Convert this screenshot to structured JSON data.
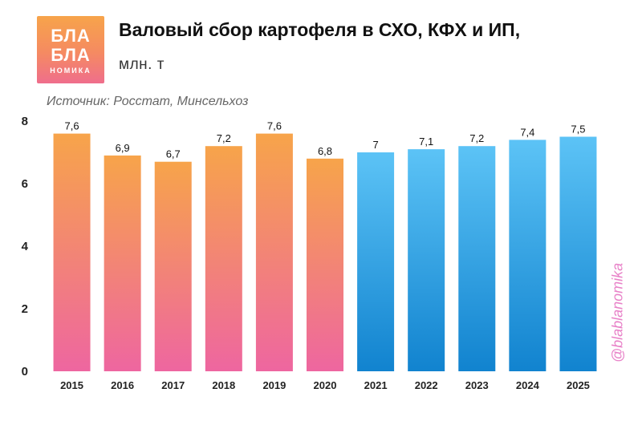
{
  "logo": {
    "line1": "БЛА",
    "line2": "БЛА",
    "line3": "НОМИКА"
  },
  "header": {
    "title": "Валовый сбор картофеля в СХО, КФХ и ИП,",
    "subtitle": "млн. т"
  },
  "source": "Источник: Росстат, Минсельхоз",
  "watermark": "@blablanomika",
  "colors": {
    "warm_top": "#f7a44a",
    "warm_bottom": "#ee66a0",
    "cool_top": "#5cc3f6",
    "cool_bottom": "#1183cf"
  },
  "chart_data": {
    "type": "bar",
    "categories": [
      "2015",
      "2016",
      "2017",
      "2018",
      "2019",
      "2020",
      "2021",
      "2022",
      "2023",
      "2024",
      "2025"
    ],
    "values": [
      7.6,
      6.9,
      6.7,
      7.2,
      7.6,
      6.8,
      7.0,
      7.1,
      7.2,
      7.4,
      7.5
    ],
    "value_labels": [
      "7,6",
      "6,9",
      "6,7",
      "7,2",
      "7,6",
      "6,8",
      "7",
      "7,1",
      "7,2",
      "7,4",
      "7,5"
    ],
    "yticks": [
      "0",
      "2",
      "4",
      "6",
      "8"
    ],
    "ytick_values": [
      0,
      2,
      4,
      6,
      8
    ],
    "ylim": [
      0,
      8
    ],
    "grid": false,
    "series_color_groups": [
      "warm",
      "warm",
      "warm",
      "warm",
      "warm",
      "warm",
      "cool",
      "cool",
      "cool",
      "cool",
      "cool"
    ]
  }
}
